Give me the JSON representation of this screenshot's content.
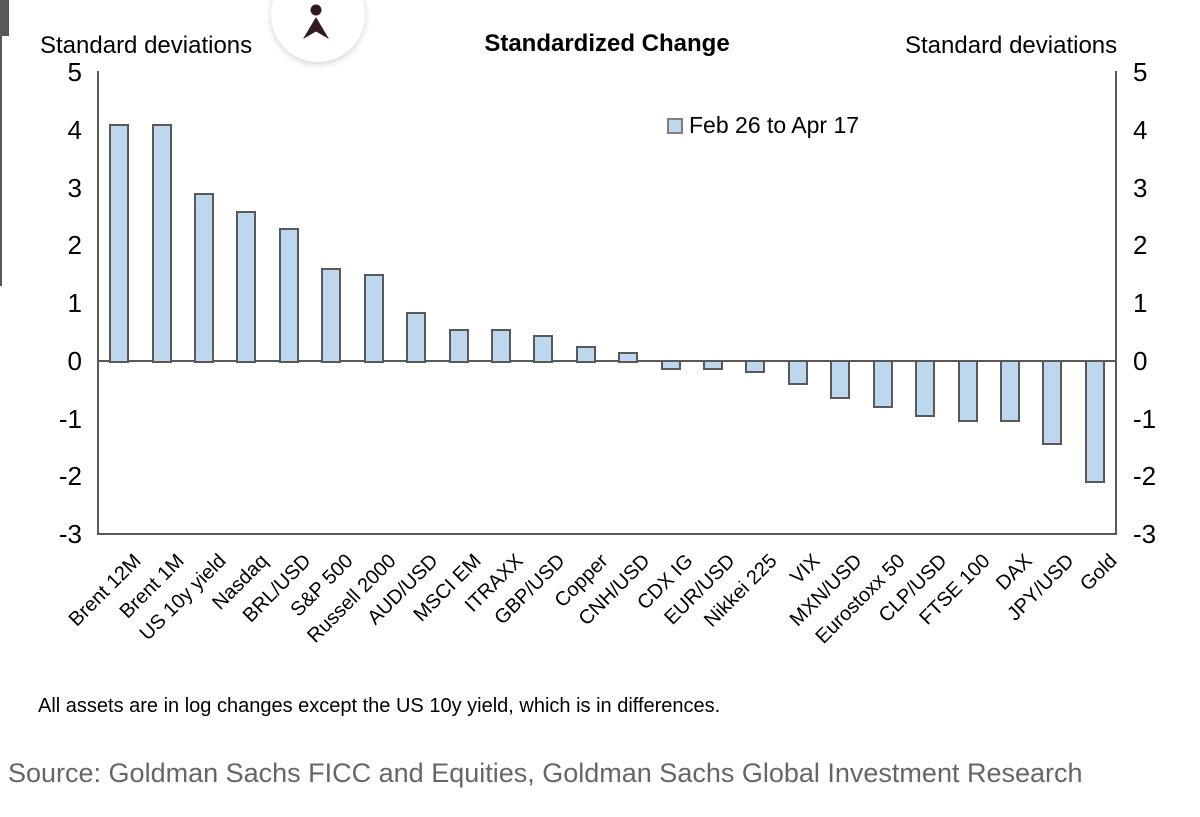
{
  "header": {
    "title": "Standardized Change",
    "y_axis_label_left": "Standard deviations",
    "y_axis_label_right": "Standard deviations"
  },
  "legend": {
    "label": "Feb 26 to Apr 17",
    "swatch_color": "#BDD7EE"
  },
  "footnote": "All assets are in log changes except the US 10y yield, which is in differences.",
  "source": "Source: Goldman Sachs FICC and Equities, Goldman Sachs Global Investment Research",
  "icons": {
    "header_badge": "person-beacon-icon"
  },
  "colors": {
    "bar_fill": "#BDD7EE",
    "bar_border": "#595959",
    "axis": "#595959",
    "source_text": "#63666A",
    "badge_glyph": "#331A1F"
  },
  "chart_data": {
    "type": "bar",
    "title": "Standardized Change",
    "ylabel_left": "Standard deviations",
    "ylabel_right": "Standard deviations",
    "legend_entries": [
      {
        "label": "Feb 26 to Apr 17",
        "color": "#BDD7EE"
      }
    ],
    "ylim": [
      -3,
      5
    ],
    "y_ticks": [
      5,
      4,
      3,
      2,
      1,
      0,
      -1,
      -2,
      -3
    ],
    "grid": false,
    "categories": [
      "Brent 12M",
      "Brent 1M",
      "US 10y yield",
      "Nasdaq",
      "BRL/USD",
      "S&P 500",
      "Russell 2000",
      "AUD/USD",
      "MSCI EM",
      "ITRAXX",
      "GBP/USD",
      "Copper",
      "CNH/USD",
      "CDX IG",
      "EUR/USD",
      "Nikkei 225",
      "VIX",
      "MXN/USD",
      "Eurostoxx 50",
      "CLP/USD",
      "FTSE 100",
      "DAX",
      "JPY/USD",
      "Gold"
    ],
    "values": [
      4.1,
      4.1,
      2.9,
      2.6,
      2.3,
      1.6,
      1.5,
      0.85,
      0.55,
      0.55,
      0.45,
      0.25,
      0.15,
      -0.15,
      -0.15,
      -0.2,
      -0.4,
      -0.65,
      -0.8,
      -0.95,
      -1.05,
      -1.05,
      -1.45,
      -2.1
    ]
  }
}
